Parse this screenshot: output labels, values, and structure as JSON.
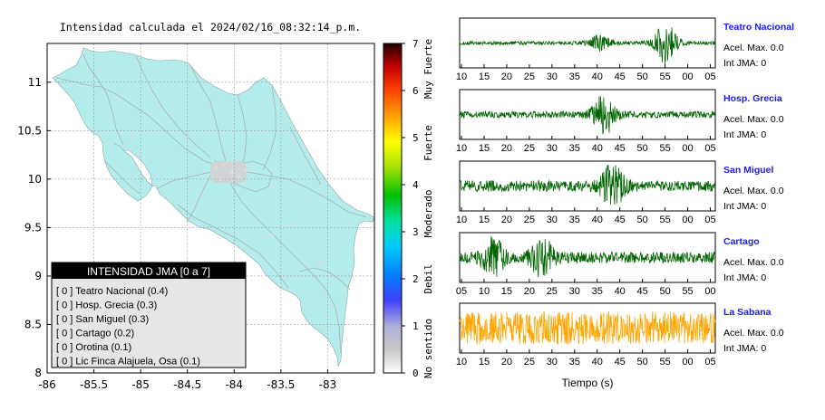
{
  "map": {
    "title": "Intensidad calculada el 2024/02/16_08:32:14_p.m.",
    "xlim": [
      -86,
      -82.5
    ],
    "ylim": [
      8,
      11.4
    ],
    "x_ticks": [
      "-86",
      "-85.5",
      "-85",
      "-84.5",
      "-84",
      "-83.5",
      "-83"
    ],
    "y_ticks": [
      "8",
      "8.5",
      "9",
      "9.5",
      "10",
      "10.5",
      "11"
    ],
    "land_color": "#b4ebeb",
    "grid": true
  },
  "colorbar": {
    "ticks": [
      "0",
      "1",
      "2",
      "3",
      "4",
      "5",
      "6",
      "7"
    ],
    "labels": [
      "No sentido",
      "Debil",
      "Moderado",
      "Fuerte",
      "Muy Fuerte"
    ]
  },
  "legend": {
    "title": "INTENSIDAD JMA [0 a 7]",
    "items": [
      "[ 0 ]  Teatro Nacional (0.4)",
      "[ 0 ]  Hosp. Grecia (0.3)",
      "[ 0 ]  San Miguel (0.3)",
      "[ 0 ]  Cartago (0.2)",
      "[ 0 ]  Orotina (0.1)",
      "[ 0 ]  Lic Finca Alajuela, Osa (0.1)"
    ]
  },
  "chart_data": [
    {
      "type": "line",
      "title": "Teatro Nacional",
      "x_ticks": [
        "10",
        "15",
        "20",
        "25",
        "30",
        "35",
        "40",
        "45",
        "50",
        "55",
        "00",
        "05"
      ],
      "series": [
        {
          "name": "Teatro Nacional",
          "color": "#006400"
        }
      ],
      "info": [
        "Acel. Max. 0.0",
        "Int JMA: 0"
      ],
      "bursts": [
        {
          "t": 39,
          "amp": 0.35
        },
        {
          "t": 55,
          "amp": 0.95
        }
      ],
      "noise": 0.08
    },
    {
      "type": "line",
      "title": "Hosp. Grecia",
      "x_ticks": [
        "10",
        "15",
        "20",
        "25",
        "30",
        "35",
        "40",
        "45",
        "50",
        "55",
        "00",
        "05"
      ],
      "series": [
        {
          "name": "Hosp. Grecia",
          "color": "#006400"
        }
      ],
      "info": [
        "Acel. Max. 0.0",
        "Int JMA: 0"
      ],
      "bursts": [
        {
          "t": 40,
          "amp": 0.95
        }
      ],
      "noise": 0.15
    },
    {
      "type": "line",
      "title": "San Miguel",
      "x_ticks": [
        "10",
        "15",
        "20",
        "25",
        "30",
        "35",
        "40",
        "45",
        "50",
        "55",
        "00",
        "05"
      ],
      "series": [
        {
          "name": "San Miguel",
          "color": "#006400"
        }
      ],
      "info": [
        "Acel. Max. 0.0",
        "Int JMA: 0"
      ],
      "bursts": [
        {
          "t": 42,
          "amp": 1.0
        }
      ],
      "noise": 0.25
    },
    {
      "type": "line",
      "title": "Cartago",
      "x_ticks": [
        "05",
        "10",
        "15",
        "20",
        "25",
        "30",
        "35",
        "40",
        "45",
        "50",
        "55",
        "00"
      ],
      "series": [
        {
          "name": "Cartago",
          "color": "#006400"
        }
      ],
      "info": [
        "Acel. Max. 0.0",
        "Int JMA: 0"
      ],
      "bursts": [
        {
          "t": 13,
          "amp": 0.9
        },
        {
          "t": 25,
          "amp": 0.8
        }
      ],
      "noise": 0.25
    },
    {
      "type": "line",
      "title": "La Sabana",
      "xlabel": "Tiempo (s)",
      "x_ticks": [
        "10",
        "15",
        "20",
        "25",
        "30",
        "35",
        "40",
        "45",
        "50",
        "55",
        "00",
        "05"
      ],
      "series": [
        {
          "name": "La Sabana",
          "color": "#ffa500"
        }
      ],
      "info": [
        "Acel. Max. 0.0",
        "Int JMA: 0"
      ],
      "bursts": [],
      "noise": 0.75
    }
  ]
}
